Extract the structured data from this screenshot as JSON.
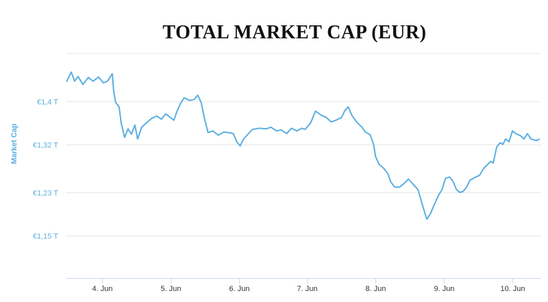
{
  "chart_data": {
    "type": "line",
    "title": "TOTAL MARKET CAP (EUR)",
    "ylabel": "Market Cap",
    "xlabel": "",
    "y_tick_labels": [
      "€1,15 T",
      "€1,23 T",
      "€1,32 T",
      "€1,4 T"
    ],
    "y_tick_values": [
      1.15,
      1.23,
      1.32,
      1.4
    ],
    "ylim": [
      1.07,
      1.49
    ],
    "x_tick_labels": [
      "4. Jun",
      "5. Jun",
      "6. Jun",
      "7. Jun",
      "8. Jun",
      "9. Jun",
      "10. Jun"
    ],
    "x_tick_values": [
      4,
      5,
      6,
      7,
      8,
      9,
      10
    ],
    "xlim": [
      3.48,
      10.42
    ],
    "grid": true,
    "line_color": "#5aaee0",
    "series": [
      {
        "values": [
          [
            3.48,
            1.437
          ],
          [
            3.55,
            1.455
          ],
          [
            3.6,
            1.438
          ],
          [
            3.65,
            1.447
          ],
          [
            3.72,
            1.432
          ],
          [
            3.8,
            1.445
          ],
          [
            3.87,
            1.438
          ],
          [
            3.95,
            1.446
          ],
          [
            4.02,
            1.435
          ],
          [
            4.08,
            1.438
          ],
          [
            4.15,
            1.452
          ],
          [
            4.17,
            1.42
          ],
          [
            4.2,
            1.398
          ],
          [
            4.25,
            1.39
          ],
          [
            4.28,
            1.36
          ],
          [
            4.33,
            1.333
          ],
          [
            4.38,
            1.349
          ],
          [
            4.43,
            1.339
          ],
          [
            4.48,
            1.356
          ],
          [
            4.52,
            1.33
          ],
          [
            4.58,
            1.352
          ],
          [
            4.65,
            1.36
          ],
          [
            4.72,
            1.368
          ],
          [
            4.8,
            1.373
          ],
          [
            4.87,
            1.367
          ],
          [
            4.93,
            1.377
          ],
          [
            5.0,
            1.37
          ],
          [
            5.05,
            1.365
          ],
          [
            5.1,
            1.383
          ],
          [
            5.15,
            1.397
          ],
          [
            5.2,
            1.407
          ],
          [
            5.28,
            1.402
          ],
          [
            5.35,
            1.404
          ],
          [
            5.4,
            1.412
          ],
          [
            5.45,
            1.398
          ],
          [
            5.5,
            1.367
          ],
          [
            5.55,
            1.342
          ],
          [
            5.62,
            1.345
          ],
          [
            5.7,
            1.337
          ],
          [
            5.78,
            1.343
          ],
          [
            5.85,
            1.342
          ],
          [
            5.92,
            1.34
          ],
          [
            5.97,
            1.325
          ],
          [
            6.02,
            1.317
          ],
          [
            6.07,
            1.33
          ],
          [
            6.12,
            1.337
          ],
          [
            6.2,
            1.348
          ],
          [
            6.3,
            1.35
          ],
          [
            6.4,
            1.349
          ],
          [
            6.47,
            1.352
          ],
          [
            6.55,
            1.345
          ],
          [
            6.62,
            1.347
          ],
          [
            6.7,
            1.34
          ],
          [
            6.77,
            1.35
          ],
          [
            6.85,
            1.345
          ],
          [
            6.92,
            1.35
          ],
          [
            6.97,
            1.348
          ],
          [
            7.05,
            1.36
          ],
          [
            7.12,
            1.382
          ],
          [
            7.2,
            1.375
          ],
          [
            7.28,
            1.37
          ],
          [
            7.35,
            1.362
          ],
          [
            7.42,
            1.365
          ],
          [
            7.5,
            1.37
          ],
          [
            7.55,
            1.383
          ],
          [
            7.6,
            1.39
          ],
          [
            7.65,
            1.375
          ],
          [
            7.72,
            1.362
          ],
          [
            7.8,
            1.352
          ],
          [
            7.85,
            1.343
          ],
          [
            7.92,
            1.338
          ],
          [
            7.97,
            1.32
          ],
          [
            8.0,
            1.297
          ],
          [
            8.05,
            1.283
          ],
          [
            8.12,
            1.275
          ],
          [
            8.18,
            1.265
          ],
          [
            8.22,
            1.25
          ],
          [
            8.28,
            1.24
          ],
          [
            8.35,
            1.24
          ],
          [
            8.4,
            1.245
          ],
          [
            8.48,
            1.255
          ],
          [
            8.55,
            1.245
          ],
          [
            8.62,
            1.235
          ],
          [
            8.7,
            1.2
          ],
          [
            8.75,
            1.18
          ],
          [
            8.8,
            1.19
          ],
          [
            8.85,
            1.205
          ],
          [
            8.92,
            1.225
          ],
          [
            8.97,
            1.235
          ],
          [
            9.02,
            1.256
          ],
          [
            9.08,
            1.259
          ],
          [
            9.13,
            1.251
          ],
          [
            9.18,
            1.236
          ],
          [
            9.23,
            1.23
          ],
          [
            9.28,
            1.232
          ],
          [
            9.33,
            1.24
          ],
          [
            9.38,
            1.253
          ],
          [
            9.45,
            1.258
          ],
          [
            9.52,
            1.262
          ],
          [
            9.58,
            1.275
          ],
          [
            9.62,
            1.28
          ],
          [
            9.68,
            1.288
          ],
          [
            9.72,
            1.285
          ],
          [
            9.77,
            1.315
          ],
          [
            9.82,
            1.323
          ],
          [
            9.86,
            1.32
          ],
          [
            9.9,
            1.33
          ],
          [
            9.95,
            1.325
          ],
          [
            10.0,
            1.345
          ],
          [
            10.05,
            1.34
          ],
          [
            10.12,
            1.336
          ],
          [
            10.17,
            1.33
          ],
          [
            10.22,
            1.34
          ],
          [
            10.27,
            1.33
          ],
          [
            10.35,
            1.327
          ],
          [
            10.4,
            1.33
          ]
        ]
      }
    ]
  }
}
